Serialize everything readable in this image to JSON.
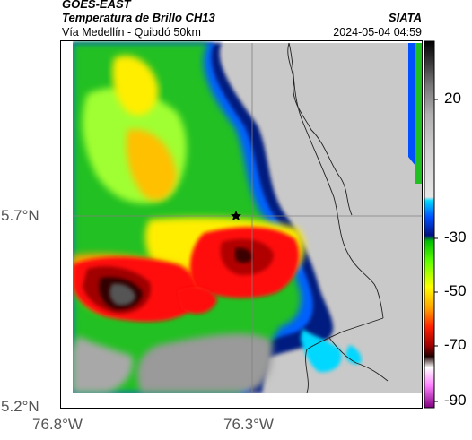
{
  "header": {
    "satellite": "GOES-EAST",
    "product": "Temperatura de Brillo CH13",
    "region": "Vía Medellín - Quibdó 50km",
    "organization": "SIATA",
    "timestamp": "2024-05-04 04:59"
  },
  "map": {
    "y_ticks": [
      {
        "value": 5.7,
        "label": "5.7°N"
      },
      {
        "value": 5.2,
        "label": "5.2°N"
      }
    ],
    "x_ticks": [
      {
        "value": -76.8,
        "label": "76.8°W"
      },
      {
        "value": -76.3,
        "label": "76.3°W"
      }
    ],
    "marker": {
      "icon": "star-icon",
      "color": "#000000"
    }
  },
  "colorbar": {
    "ticks": [
      {
        "value": 20,
        "label": "20"
      },
      {
        "value": -30,
        "label": "-30"
      },
      {
        "value": -50,
        "label": "-50"
      },
      {
        "value": -70,
        "label": "-70"
      },
      {
        "value": -90,
        "label": "-90"
      }
    ],
    "stops": [
      "#000000",
      "#3a3a3a",
      "#777777",
      "#b0b0b0",
      "#d0d0d0",
      "#e6e6e6",
      "#00d8ff",
      "#0050ff",
      "#001080",
      "#00c000",
      "#60ff00",
      "#ffff00",
      "#ffa000",
      "#ff2000",
      "#a00000",
      "#200000",
      "#ffffff",
      "#ff80ff",
      "#800080"
    ]
  }
}
